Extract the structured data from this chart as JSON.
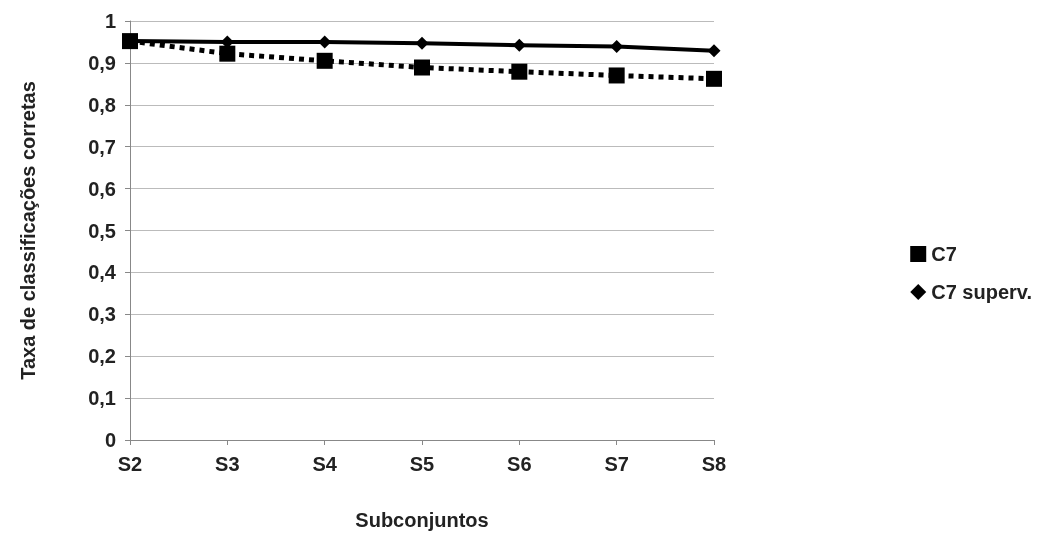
{
  "chart_data": {
    "type": "line",
    "xlabel": "Subconjuntos",
    "ylabel": "Taxa de classificações corretas",
    "categories": [
      "S2",
      "S3",
      "S4",
      "S5",
      "S6",
      "S7",
      "S8"
    ],
    "series": [
      {
        "name": "C7",
        "color": "#000000",
        "marker": "square",
        "line_style": "dotted",
        "values": [
          0.952,
          0.922,
          0.905,
          0.889,
          0.879,
          0.87,
          0.862
        ]
      },
      {
        "name": "C7 superv.",
        "color": "#000000",
        "marker": "diamond",
        "line_style": "solid",
        "values": [
          0.952,
          0.95,
          0.95,
          0.947,
          0.942,
          0.939,
          0.929
        ]
      }
    ],
    "ylim": [
      0,
      1
    ],
    "yticks": [
      {
        "value": 0,
        "label": "0"
      },
      {
        "value": 0.1,
        "label": "0,1"
      },
      {
        "value": 0.2,
        "label": "0,2"
      },
      {
        "value": 0.3,
        "label": "0,3"
      },
      {
        "value": 0.4,
        "label": "0,4"
      },
      {
        "value": 0.5,
        "label": "0,5"
      },
      {
        "value": 0.6,
        "label": "0,6"
      },
      {
        "value": 0.7,
        "label": "0,7"
      },
      {
        "value": 0.8,
        "label": "0,8"
      },
      {
        "value": 0.9,
        "label": "0,9"
      },
      {
        "value": 1,
        "label": "1"
      }
    ],
    "grid": "y",
    "legend": "right"
  }
}
